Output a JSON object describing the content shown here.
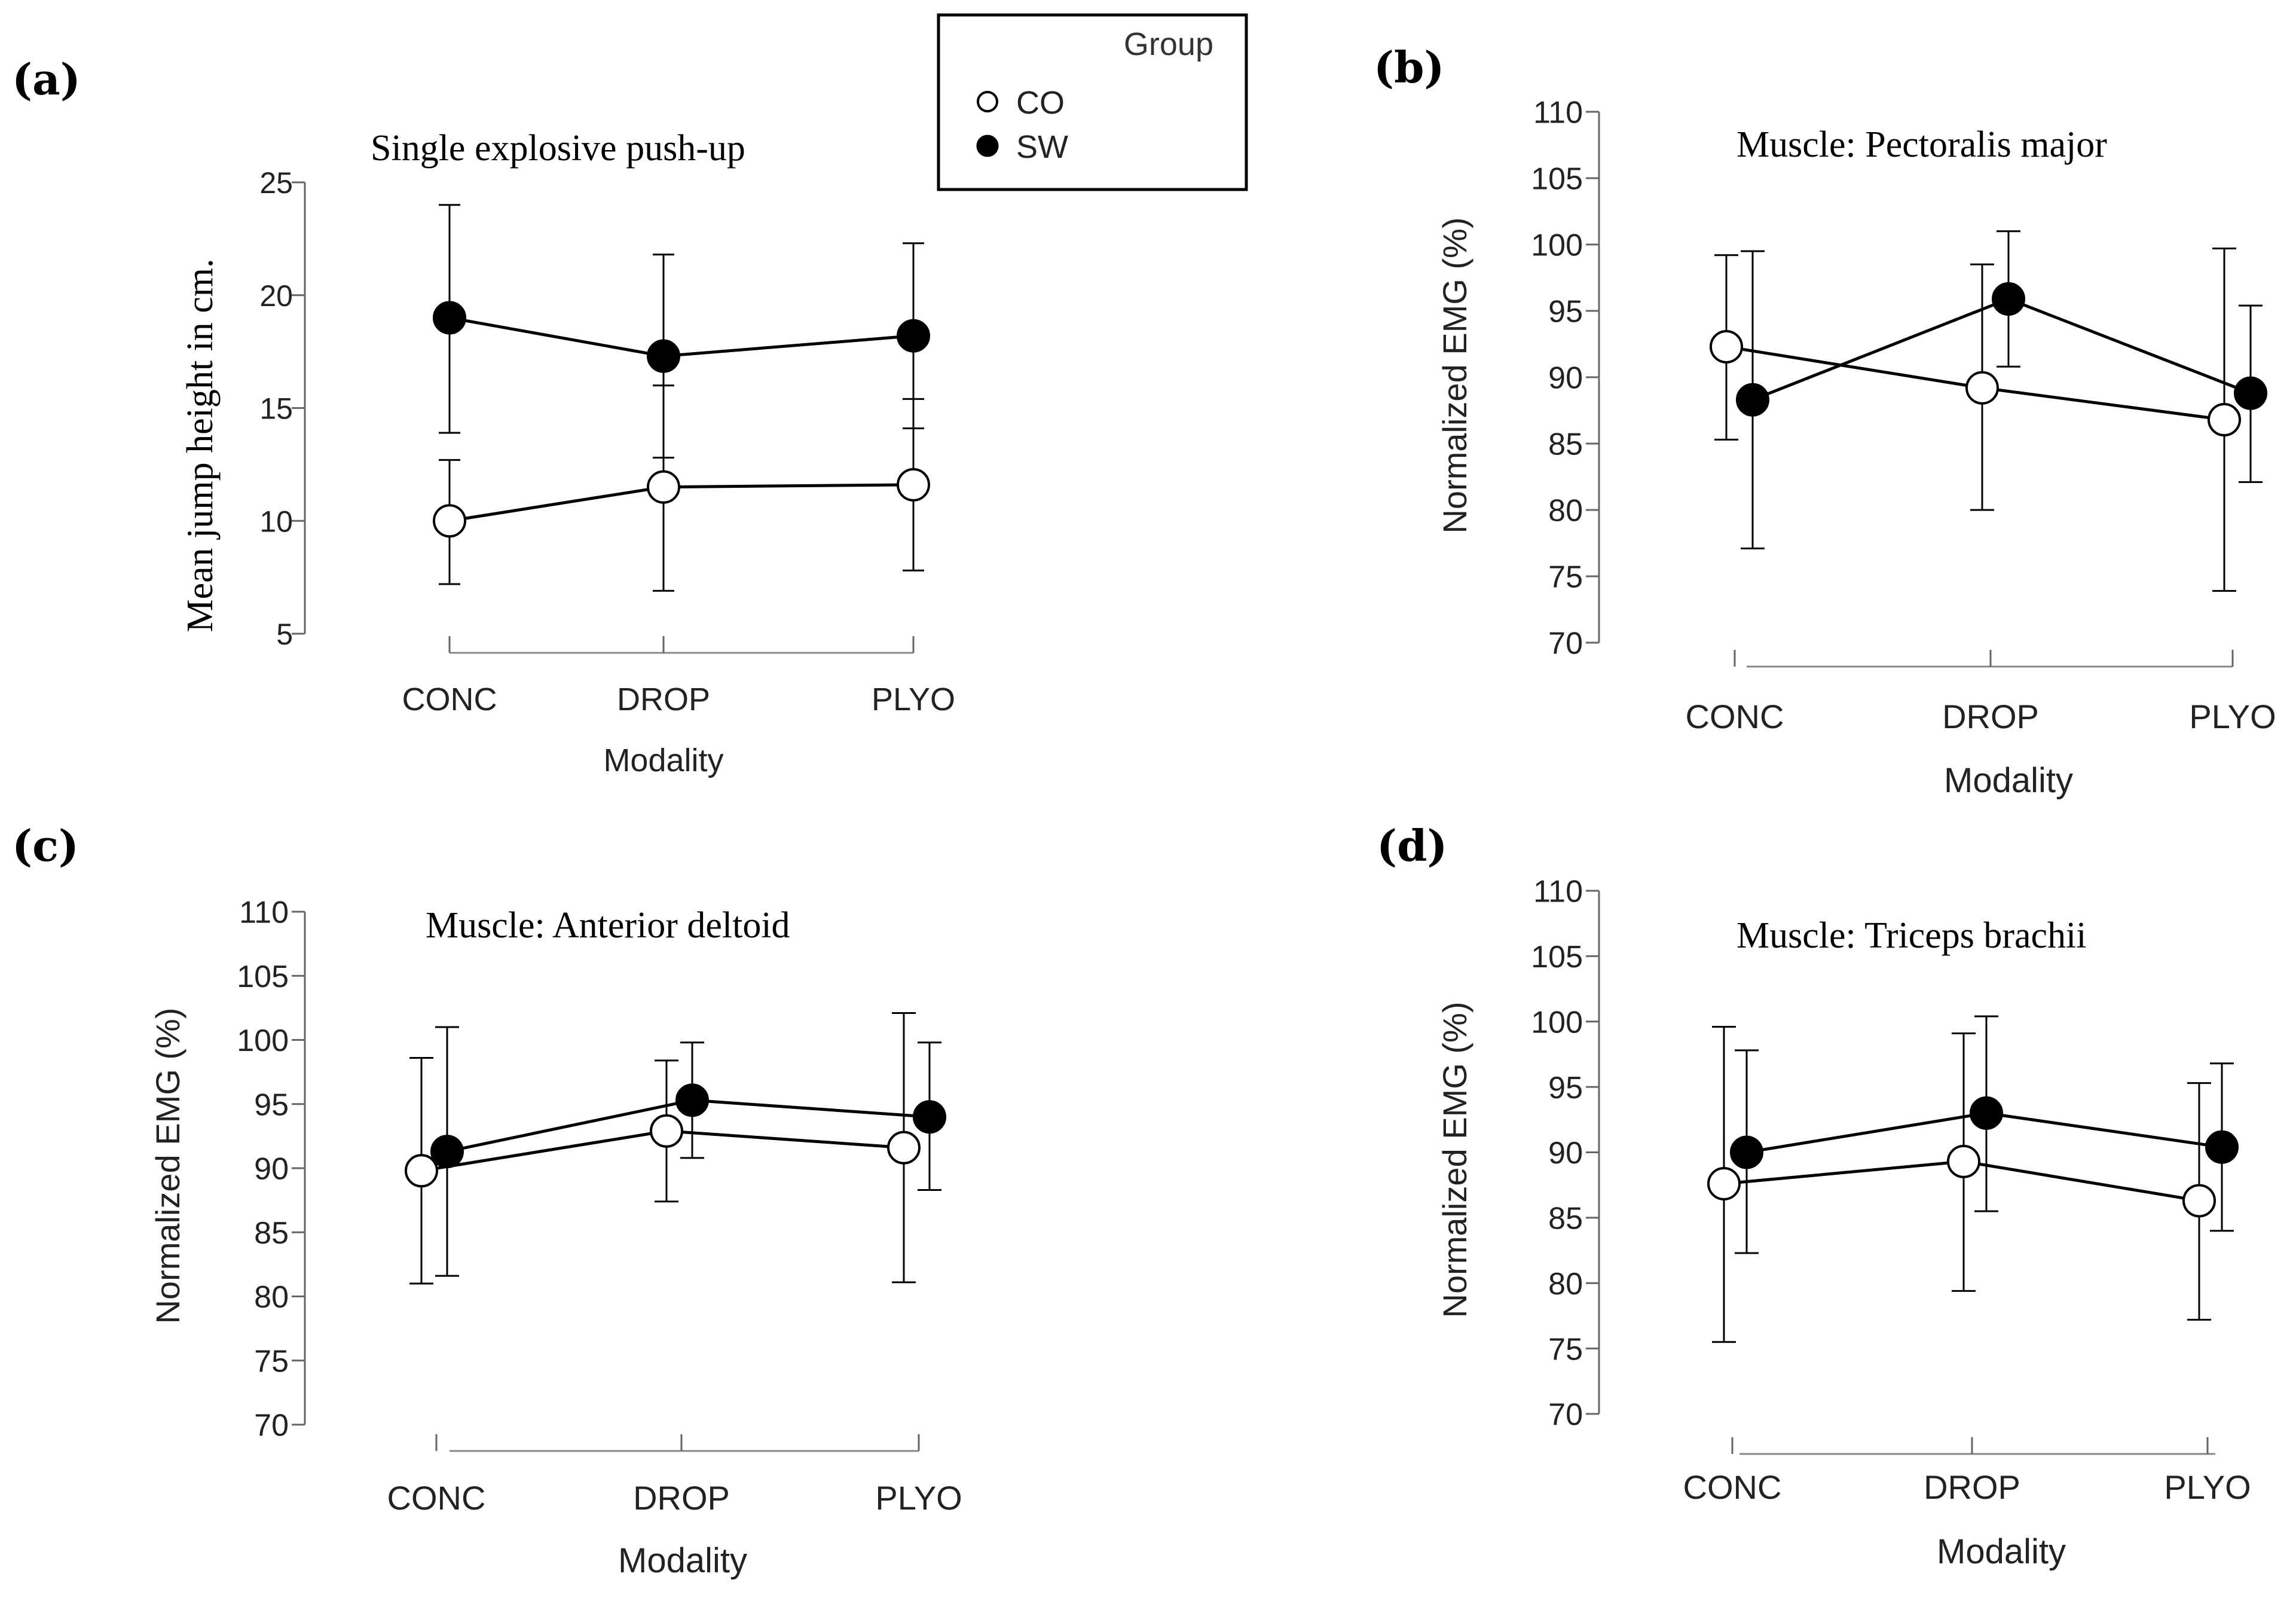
{
  "legend": {
    "title": "Group",
    "entries": [
      {
        "name": "CO",
        "fill": "#ffffff"
      },
      {
        "name": "SW",
        "fill": "#000000"
      }
    ]
  },
  "chart_data": [
    {
      "type": "line",
      "panel": "(a)",
      "title": "Single explosive push-up",
      "xlabel": "Modality",
      "ylabel": "Mean jump height in cm.",
      "categories": [
        "CONC",
        "DROP",
        "PLYO"
      ],
      "ylim": [
        5,
        25
      ],
      "yticks": [
        5,
        10,
        15,
        20,
        25
      ],
      "series": [
        {
          "name": "CO",
          "values": [
            10.0,
            11.5,
            11.6
          ],
          "err_low": [
            7.2,
            6.9,
            7.8
          ],
          "err_high": [
            12.7,
            16.0,
            15.4
          ]
        },
        {
          "name": "SW",
          "values": [
            19.0,
            17.3,
            18.2
          ],
          "err_low": [
            13.9,
            12.8,
            14.1
          ],
          "err_high": [
            24.0,
            21.8,
            22.3
          ]
        }
      ]
    },
    {
      "type": "line",
      "panel": "(b)",
      "title": "Muscle: Pectoralis major",
      "xlabel": "Modality",
      "ylabel": "Normalized EMG (%)",
      "categories": [
        "CONC",
        "DROP",
        "PLYO"
      ],
      "ylim": [
        70,
        110
      ],
      "yticks": [
        70,
        75,
        80,
        85,
        90,
        95,
        100,
        105,
        110
      ],
      "series": [
        {
          "name": "CO",
          "values": [
            92.3,
            89.2,
            86.8
          ],
          "err_low": [
            85.3,
            80.0,
            73.9
          ],
          "err_high": [
            99.2,
            98.5,
            99.7
          ]
        },
        {
          "name": "SW",
          "values": [
            88.3,
            95.9,
            88.8
          ],
          "err_low": [
            77.1,
            90.8,
            82.1
          ],
          "err_high": [
            99.5,
            101.0,
            95.4
          ]
        }
      ]
    },
    {
      "type": "line",
      "panel": "(c)",
      "title": "Muscle: Anterior deltoid",
      "xlabel": "Modality",
      "ylabel": "Normalized EMG (%)",
      "categories": [
        "CONC",
        "DROP",
        "PLYO"
      ],
      "ylim": [
        70,
        110
      ],
      "yticks": [
        70,
        75,
        80,
        85,
        90,
        95,
        100,
        105,
        110
      ],
      "series": [
        {
          "name": "CO",
          "values": [
            89.8,
            92.9,
            91.6
          ],
          "err_low": [
            81.0,
            87.4,
            81.1
          ],
          "err_high": [
            98.6,
            98.4,
            102.1
          ]
        },
        {
          "name": "SW",
          "values": [
            91.3,
            95.3,
            94.0
          ],
          "err_low": [
            81.6,
            90.8,
            88.3
          ],
          "err_high": [
            101.0,
            99.8,
            99.8
          ]
        }
      ]
    },
    {
      "type": "line",
      "panel": "(d)",
      "title": "Muscle: Triceps brachii",
      "xlabel": "Modality",
      "ylabel": "Normalized EMG (%)",
      "categories": [
        "CONC",
        "DROP",
        "PLYO"
      ],
      "ylim": [
        70,
        110
      ],
      "yticks": [
        70,
        75,
        80,
        85,
        90,
        95,
        100,
        105,
        110
      ],
      "series": [
        {
          "name": "CO",
          "values": [
            87.6,
            89.3,
            86.3
          ],
          "err_low": [
            75.5,
            79.4,
            77.2
          ],
          "err_high": [
            99.6,
            99.1,
            95.3
          ]
        },
        {
          "name": "SW",
          "values": [
            90.0,
            93.0,
            90.4
          ],
          "err_low": [
            82.3,
            85.5,
            84.0
          ],
          "err_high": [
            97.8,
            100.4,
            96.8
          ]
        }
      ]
    }
  ]
}
